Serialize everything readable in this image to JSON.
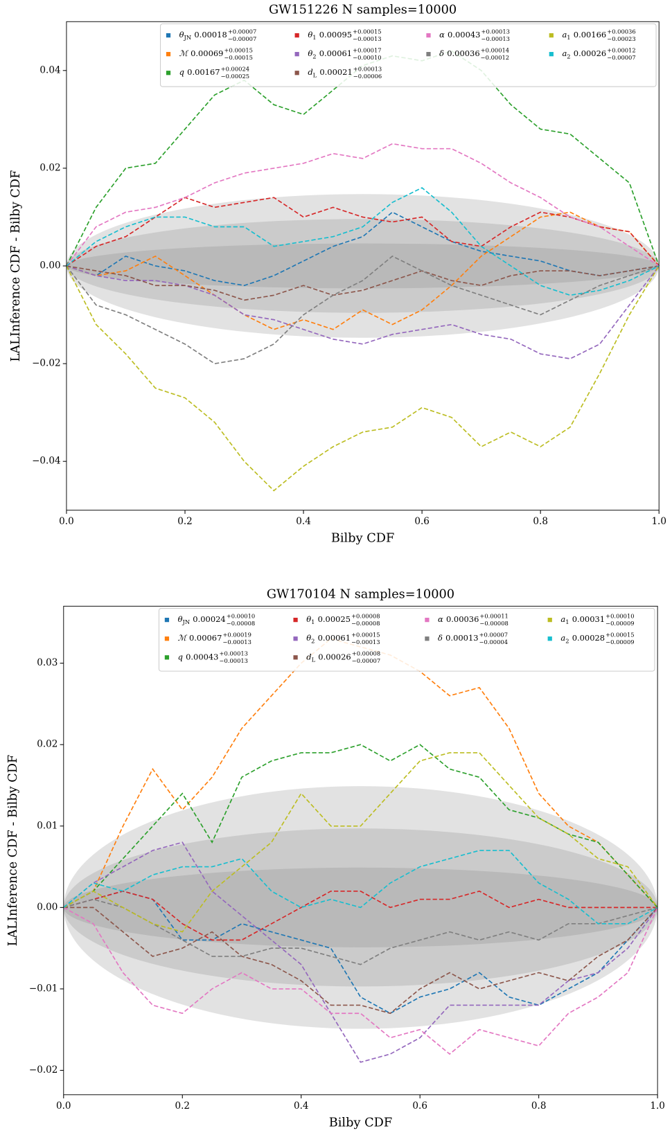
{
  "chart_data": [
    {
      "type": "line",
      "title": "GW151226 N samples=10000",
      "x_label": "Bilby CDF",
      "y_label": "LALInference CDF - Bilby CDF",
      "xlim": [
        0,
        1
      ],
      "ylim": [
        -0.05,
        0.05
      ],
      "xticks": [
        {
          "value": 0,
          "label": "0.0"
        },
        {
          "value": 0.2,
          "label": "0.2"
        },
        {
          "value": 0.4,
          "label": "0.4"
        },
        {
          "value": 0.6,
          "label": "0.6"
        },
        {
          "value": 0.8,
          "label": "0.8"
        },
        {
          "value": 1,
          "label": "1.0"
        }
      ],
      "yticks": [
        {
          "value": -0.04,
          "label": "−0.04"
        },
        {
          "value": -0.02,
          "label": "−0.02"
        },
        {
          "value": 0,
          "label": "0.00"
        },
        {
          "value": 0.02,
          "label": "0.02"
        },
        {
          "value": 0.04,
          "label": "0.04"
        }
      ],
      "grid": false,
      "legend_loc": "upper right",
      "legend_columns": 4,
      "bands": [
        0.0147,
        0.0096,
        0.0046
      ],
      "x": [
        0,
        0.05,
        0.1,
        0.15,
        0.2,
        0.25,
        0.3,
        0.35,
        0.4,
        0.45,
        0.5,
        0.55,
        0.6,
        0.65,
        0.7,
        0.75,
        0.8,
        0.85,
        0.9,
        0.95,
        1
      ],
      "series": [
        {
          "name": "θ",
          "sub": "JN",
          "median": "0.00018",
          "upper": "+0.00007",
          "lower": "−0.00007",
          "color": "#1f77b4",
          "values": [
            0,
            -0.002,
            0.002,
            0,
            -0.001,
            -0.003,
            -0.004,
            -0.002,
            0.001,
            0.004,
            0.006,
            0.011,
            0.008,
            0.005,
            0.003,
            0.002,
            0.001,
            -0.001,
            -0.002,
            -0.001,
            0
          ]
        },
        {
          "name": "ℳ",
          "median": "0.00069",
          "upper": "+0.00015",
          "lower": "−0.00015",
          "color": "#ff7f0e",
          "values": [
            0,
            -0.002,
            -0.001,
            0.002,
            -0.002,
            -0.006,
            -0.01,
            -0.013,
            -0.011,
            -0.013,
            -0.009,
            -0.012,
            -0.009,
            -0.004,
            0.002,
            0.006,
            0.01,
            0.011,
            0.008,
            0.007,
            0
          ]
        },
        {
          "name": "q",
          "median": "0.00167",
          "upper": "+0.00024",
          "lower": "−0.00025",
          "color": "#2ca02c",
          "values": [
            0,
            0.012,
            0.02,
            0.021,
            0.028,
            0.035,
            0.038,
            0.033,
            0.031,
            0.036,
            0.041,
            0.043,
            0.042,
            0.044,
            0.04,
            0.033,
            0.028,
            0.027,
            0.022,
            0.017,
            0
          ]
        },
        {
          "name": "θ",
          "sub": "1",
          "median": "0.00095",
          "upper": "+0.00015",
          "lower": "−0.00013",
          "color": "#d62728",
          "values": [
            0,
            0.004,
            0.006,
            0.01,
            0.014,
            0.012,
            0.013,
            0.014,
            0.01,
            0.012,
            0.01,
            0.009,
            0.01,
            0.005,
            0.004,
            0.008,
            0.011,
            0.01,
            0.008,
            0.007,
            0
          ]
        },
        {
          "name": "θ",
          "sub": "2",
          "median": "0.00061",
          "upper": "+0.00017",
          "lower": "−0.00010",
          "color": "#9467bd",
          "values": [
            0,
            -0.002,
            -0.003,
            -0.003,
            -0.004,
            -0.006,
            -0.01,
            -0.011,
            -0.013,
            -0.015,
            -0.016,
            -0.014,
            -0.013,
            -0.012,
            -0.014,
            -0.015,
            -0.018,
            -0.019,
            -0.016,
            -0.008,
            0
          ]
        },
        {
          "name": "d",
          "sub": "L",
          "median": "0.00021",
          "upper": "+0.00013",
          "lower": "−0.00006",
          "color": "#8c564b",
          "values": [
            0,
            -0.001,
            -0.002,
            -0.004,
            -0.004,
            -0.005,
            -0.007,
            -0.006,
            -0.004,
            -0.006,
            -0.005,
            -0.003,
            -0.001,
            -0.003,
            -0.004,
            -0.002,
            -0.001,
            -0.001,
            -0.002,
            -0.001,
            0
          ]
        },
        {
          "name": "α",
          "median": "0.00043",
          "upper": "+0.00013",
          "lower": "−0.00013",
          "color": "#e377c2",
          "values": [
            0,
            0.008,
            0.011,
            0.012,
            0.014,
            0.017,
            0.019,
            0.02,
            0.021,
            0.023,
            0.022,
            0.025,
            0.024,
            0.024,
            0.021,
            0.017,
            0.014,
            0.01,
            0.008,
            0.004,
            0
          ]
        },
        {
          "name": "δ",
          "median": "0.00036",
          "upper": "+0.00014",
          "lower": "−0.00012",
          "color": "#7f7f7f",
          "values": [
            0,
            -0.008,
            -0.01,
            -0.013,
            -0.016,
            -0.02,
            -0.019,
            -0.016,
            -0.01,
            -0.006,
            -0.003,
            0.002,
            -0.001,
            -0.004,
            -0.006,
            -0.008,
            -0.01,
            -0.007,
            -0.004,
            -0.002,
            0
          ]
        },
        {
          "name": "a",
          "sub": "1",
          "median": "0.00166",
          "upper": "+0.00036",
          "lower": "−0.00023",
          "color": "#bcbd22",
          "values": [
            0,
            -0.012,
            -0.018,
            -0.025,
            -0.027,
            -0.032,
            -0.04,
            -0.046,
            -0.041,
            -0.037,
            -0.034,
            -0.033,
            -0.029,
            -0.031,
            -0.037,
            -0.034,
            -0.037,
            -0.033,
            -0.022,
            -0.01,
            0
          ]
        },
        {
          "name": "a",
          "sub": "2",
          "median": "0.00026",
          "upper": "+0.00012",
          "lower": "−0.00007",
          "color": "#17becf",
          "values": [
            0,
            0.005,
            0.008,
            0.01,
            0.01,
            0.008,
            0.008,
            0.004,
            0.005,
            0.006,
            0.008,
            0.013,
            0.016,
            0.011,
            0.004,
            0,
            -0.004,
            -0.006,
            -0.005,
            -0.003,
            0
          ]
        }
      ]
    },
    {
      "type": "line",
      "title": "GW170104 N samples=10000",
      "x_label": "Bilby CDF",
      "y_label": "LALInference CDF - Bilby CDF",
      "xlim": [
        0,
        1
      ],
      "ylim": [
        -0.023,
        0.037
      ],
      "xticks": [
        {
          "value": 0,
          "label": "0.0"
        },
        {
          "value": 0.2,
          "label": "0.2"
        },
        {
          "value": 0.4,
          "label": "0.4"
        },
        {
          "value": 0.6,
          "label": "0.6"
        },
        {
          "value": 0.8,
          "label": "0.8"
        },
        {
          "value": 1,
          "label": "1.0"
        }
      ],
      "yticks": [
        {
          "value": -0.02,
          "label": "−0.02"
        },
        {
          "value": -0.01,
          "label": "−0.01"
        },
        {
          "value": 0,
          "label": "0.00"
        },
        {
          "value": 0.01,
          "label": "0.01"
        },
        {
          "value": 0.02,
          "label": "0.02"
        },
        {
          "value": 0.03,
          "label": "0.03"
        }
      ],
      "grid": false,
      "legend_loc": "upper right",
      "legend_columns": 4,
      "bands": [
        0.0149,
        0.0097,
        0.0049
      ],
      "x": [
        0,
        0.05,
        0.1,
        0.15,
        0.2,
        0.25,
        0.3,
        0.35,
        0.4,
        0.45,
        0.5,
        0.55,
        0.6,
        0.65,
        0.7,
        0.75,
        0.8,
        0.85,
        0.9,
        0.95,
        1
      ],
      "series": [
        {
          "name": "θ",
          "sub": "JN",
          "median": "0.00024",
          "upper": "+0.00010",
          "lower": "−0.00008",
          "color": "#1f77b4",
          "values": [
            0,
            0.001,
            0.002,
            0.001,
            -0.004,
            -0.004,
            -0.002,
            -0.003,
            -0.004,
            -0.005,
            -0.011,
            -0.013,
            -0.011,
            -0.01,
            -0.008,
            -0.011,
            -0.012,
            -0.01,
            -0.008,
            -0.004,
            0
          ]
        },
        {
          "name": "ℳ",
          "median": "0.00067",
          "upper": "+0.00019",
          "lower": "−0.00013",
          "color": "#ff7f0e",
          "values": [
            0,
            0.002,
            0.01,
            0.017,
            0.012,
            0.016,
            0.022,
            0.026,
            0.03,
            0.033,
            0.032,
            0.031,
            0.029,
            0.026,
            0.027,
            0.022,
            0.014,
            0.01,
            0.008,
            0.004,
            0
          ]
        },
        {
          "name": "q",
          "median": "0.00043",
          "upper": "+0.00013",
          "lower": "−0.00013",
          "color": "#2ca02c",
          "values": [
            0,
            0.002,
            0.006,
            0.01,
            0.014,
            0.008,
            0.016,
            0.018,
            0.019,
            0.019,
            0.02,
            0.018,
            0.02,
            0.017,
            0.016,
            0.012,
            0.011,
            0.009,
            0.008,
            0.004,
            0
          ]
        },
        {
          "name": "θ",
          "sub": "1",
          "median": "0.00025",
          "upper": "+0.00008",
          "lower": "−0.00008",
          "color": "#d62728",
          "values": [
            0,
            0.001,
            0.002,
            0.001,
            -0.002,
            -0.004,
            -0.004,
            -0.002,
            0,
            0.002,
            0.002,
            0,
            0.001,
            0.001,
            0.002,
            0,
            0.001,
            0,
            0,
            0,
            0
          ]
        },
        {
          "name": "θ",
          "sub": "2",
          "median": "0.00061",
          "upper": "+0.00015",
          "lower": "−0.00013",
          "color": "#9467bd",
          "values": [
            0,
            0.003,
            0.005,
            0.007,
            0.008,
            0.002,
            -0.001,
            -0.004,
            -0.007,
            -0.013,
            -0.019,
            -0.018,
            -0.016,
            -0.012,
            -0.012,
            -0.012,
            -0.012,
            -0.009,
            -0.008,
            -0.005,
            0
          ]
        },
        {
          "name": "d",
          "sub": "L",
          "median": "0.00026",
          "upper": "+0.00008",
          "lower": "−0.00007",
          "color": "#8c564b",
          "values": [
            0,
            0,
            -0.003,
            -0.006,
            -0.005,
            -0.003,
            -0.006,
            -0.007,
            -0.009,
            -0.012,
            -0.012,
            -0.013,
            -0.01,
            -0.008,
            -0.01,
            -0.009,
            -0.008,
            -0.009,
            -0.006,
            -0.004,
            0
          ]
        },
        {
          "name": "α",
          "median": "0.00036",
          "upper": "+0.00011",
          "lower": "−0.00008",
          "color": "#e377c2",
          "values": [
            0,
            -0.002,
            -0.008,
            -0.012,
            -0.013,
            -0.01,
            -0.008,
            -0.01,
            -0.01,
            -0.013,
            -0.013,
            -0.016,
            -0.015,
            -0.018,
            -0.015,
            -0.016,
            -0.017,
            -0.013,
            -0.011,
            -0.008,
            0
          ]
        },
        {
          "name": "δ",
          "median": "0.00013",
          "upper": "+0.00007",
          "lower": "−0.00004",
          "color": "#7f7f7f",
          "values": [
            0,
            0.001,
            0,
            -0.002,
            -0.004,
            -0.006,
            -0.006,
            -0.005,
            -0.005,
            -0.006,
            -0.007,
            -0.005,
            -0.004,
            -0.003,
            -0.004,
            -0.003,
            -0.004,
            -0.002,
            -0.002,
            -0.001,
            0
          ]
        },
        {
          "name": "a",
          "sub": "1",
          "median": "0.00031",
          "upper": "+0.00010",
          "lower": "−0.00009",
          "color": "#bcbd22",
          "values": [
            0,
            0.002,
            0,
            -0.002,
            -0.003,
            0.002,
            0.005,
            0.008,
            0.014,
            0.01,
            0.01,
            0.014,
            0.018,
            0.019,
            0.019,
            0.015,
            0.011,
            0.009,
            0.006,
            0.005,
            0
          ]
        },
        {
          "name": "a",
          "sub": "2",
          "median": "0.00028",
          "upper": "+0.00015",
          "lower": "−0.00009",
          "color": "#17becf",
          "values": [
            0,
            0.003,
            0.002,
            0.004,
            0.005,
            0.005,
            0.006,
            0.002,
            0,
            0.001,
            0,
            0.003,
            0.005,
            0.006,
            0.007,
            0.007,
            0.003,
            0.001,
            -0.002,
            -0.002,
            0
          ]
        }
      ]
    }
  ]
}
